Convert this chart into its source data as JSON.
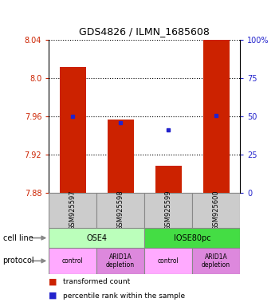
{
  "title": "GDS4826 / ILMN_1685608",
  "samples": [
    "GSM925597",
    "GSM925598",
    "GSM925599",
    "GSM925600"
  ],
  "bar_values": [
    8.012,
    7.957,
    7.908,
    8.04
  ],
  "bar_base": 7.88,
  "percentile_values": [
    7.96,
    7.953,
    7.946,
    7.961
  ],
  "ylim": [
    7.88,
    8.04
  ],
  "yticks_left": [
    7.88,
    7.92,
    7.96,
    8.0,
    8.04
  ],
  "yticks_right": [
    0,
    25,
    50,
    75,
    100
  ],
  "bar_color": "#cc2200",
  "percentile_color": "#2222cc",
  "cell_lines": [
    {
      "label": "OSE4",
      "cols": [
        0,
        1
      ],
      "color": "#bbffbb"
    },
    {
      "label": "IOSE80pc",
      "cols": [
        2,
        3
      ],
      "color": "#44dd44"
    }
  ],
  "protocols": [
    {
      "label": "control",
      "col": 0,
      "color": "#ffaaff"
    },
    {
      "label": "ARID1A\ndepletion",
      "col": 1,
      "color": "#dd88dd"
    },
    {
      "label": "control",
      "col": 2,
      "color": "#ffaaff"
    },
    {
      "label": "ARID1A\ndepletion",
      "col": 3,
      "color": "#dd88dd"
    }
  ],
  "legend_red": "transformed count",
  "legend_blue": "percentile rank within the sample",
  "left_color": "#cc2200",
  "right_color": "#2222cc",
  "cell_line_label": "cell line",
  "protocol_label": "protocol",
  "sample_box_color": "#cccccc",
  "bar_width": 0.55,
  "title_fontsize": 9,
  "tick_fontsize": 7,
  "sample_fontsize": 6,
  "label_fontsize": 7,
  "legend_fontsize": 6.5
}
